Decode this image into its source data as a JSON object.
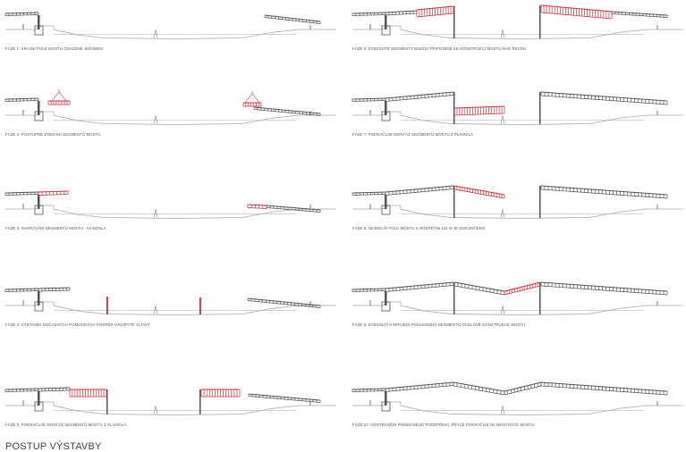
{
  "title": "POSTUP VÝSTAVBY",
  "colors": {
    "steel": "#555555",
    "new": "#d1303a",
    "ground": "#aaaaaa"
  },
  "phases": [
    {
      "id": 1,
      "caption": "FÁZE 1: KRAJNÍ POLE MOSTU OSAZENÉ JEŘÁBEM"
    },
    {
      "id": 2,
      "caption": "FÁZE 2: POSTUPNÉ ZVEDÁNÍ SEGMENTŮ MOSTU"
    },
    {
      "id": 3,
      "caption": "FÁZE 3: SVAŘOVÁNÍ SEGMENTŮ MOSTU - KONZOLA"
    },
    {
      "id": 4,
      "caption": "FÁZE 4: VÝSTAVBA DOČASNÝCH POMOCNÝCH PODPĚR V KORYTĚ VLTAVY"
    },
    {
      "id": 5,
      "caption": "FÁZE 5: POKRAČUJE MONTÁŽ SEGMENTŮ MOSTU Z PLAVIDLA"
    },
    {
      "id": 6,
      "caption": "FÁZE 6: ZVEDNUTÉ SEGMENTY BUDOU PŘIPOJENÉ KE KONSTRUKCI MOSTU NAD ŘEKOU"
    },
    {
      "id": 7,
      "caption": "FÁZE 7: POKRAČUJE MONTÁŽ SEGMENTŮ MOSTU Z PLAVIDLA"
    },
    {
      "id": 8,
      "caption": "FÁZE 8: NEJDELŠÍ POLE MOSTU S ROZPĚTÍM 115 M JE DOKONČENO"
    },
    {
      "id": 9,
      "caption": "FÁZE 9: ZVEDNUTÍ A SPOJENÍ POSLEDNÍHO SEGMENTU OCELOVÉ KONSTRUKCE MOSTU"
    },
    {
      "id": 10,
      "caption": "FÁZE 10: ODSTRANĚNÍ POMOCNÉHO PODEPŘENÍ, PRÁCE POKRAČUJÍ NA MOSTOVCE MOSTU"
    }
  ]
}
